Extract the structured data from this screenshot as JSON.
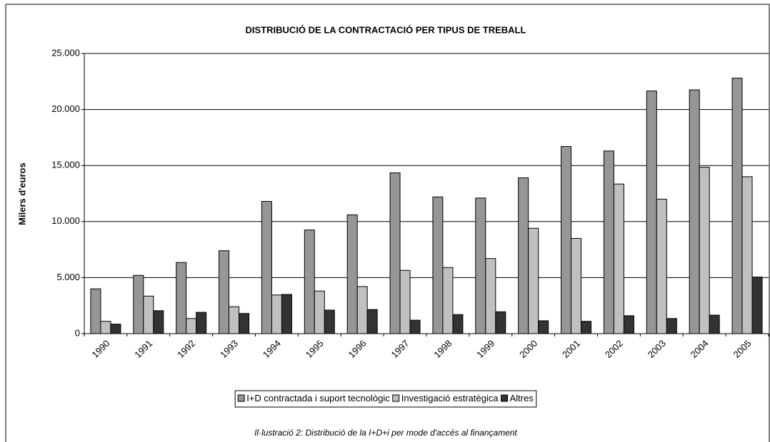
{
  "chart_data": {
    "type": "bar",
    "title": "DISTRIBUCIÓ DE LA CONTRACTACIÓ PER TIPUS DE TREBALL",
    "y_label": "Milers d'euros",
    "caption": "Il·lustració 2: Distribució de la I+D+i per mode d'accés al finançament",
    "categories": [
      "1990",
      "1991",
      "1992",
      "1993",
      "1994",
      "1995",
      "1996",
      "1997",
      "1998",
      "1999",
      "2000",
      "2001",
      "2002",
      "2003",
      "2004",
      "2005"
    ],
    "series": [
      {
        "name": "I+D contractada i suport tecnològic",
        "color": "#969696",
        "values": [
          4000,
          5200,
          6350,
          7400,
          11800,
          9250,
          10600,
          14350,
          12200,
          12100,
          13900,
          16700,
          16300,
          21650,
          21750,
          22800
        ]
      },
      {
        "name": "Investigació estratègica",
        "color": "#c0c0c0",
        "values": [
          1100,
          3350,
          1350,
          2400,
          3450,
          3800,
          4200,
          5650,
          5900,
          6700,
          9400,
          8500,
          13350,
          12000,
          14850,
          14000
        ]
      },
      {
        "name": "Altres",
        "color": "#333333",
        "values": [
          850,
          2050,
          1900,
          1800,
          3500,
          2100,
          2150,
          1200,
          1700,
          1950,
          1150,
          1100,
          1600,
          1350,
          1650,
          5050
        ]
      }
    ],
    "ylim": [
      0,
      25000
    ],
    "yticks": [
      0,
      {
        "value": 5000,
        "label": "5.000"
      },
      {
        "value": 10000,
        "label": "10.000"
      },
      {
        "value": 15000,
        "label": "15.000"
      },
      {
        "value": 20000,
        "label": "20.000"
      },
      {
        "value": 25000,
        "label": "25.000"
      }
    ],
    "grid": true,
    "legend": "bottom"
  }
}
